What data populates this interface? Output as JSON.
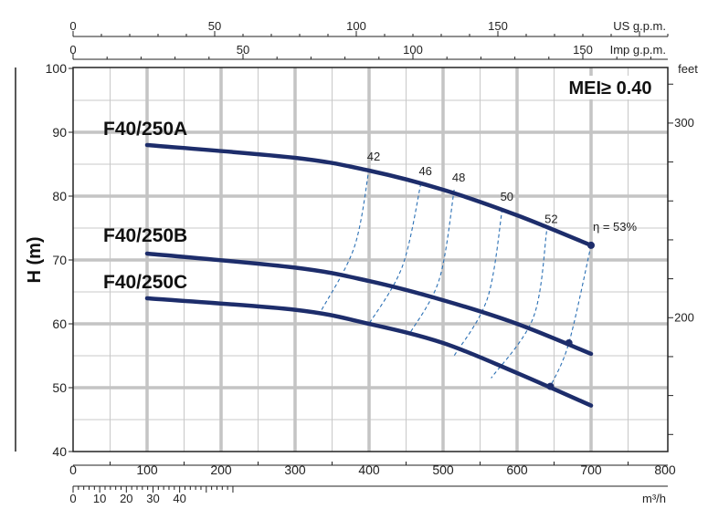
{
  "chart_data": {
    "type": "line",
    "mei_label": "MEI≥ 0.40",
    "ylabel": "H (m)",
    "right_unit": "feet",
    "top_unit_us": "US g.p.m.",
    "top_unit_imp": "Imp g.p.m.",
    "bottom_unit": "m³/h",
    "xlim": [
      0,
      800
    ],
    "ylim": [
      40,
      100
    ],
    "x_ticks": [
      0,
      100,
      200,
      300,
      400,
      500,
      600,
      700,
      800
    ],
    "y_ticks": [
      40,
      50,
      60,
      70,
      80,
      90,
      100
    ],
    "feet_ticks": [
      200,
      300
    ],
    "us_gpm_ticks": [
      0,
      50,
      100,
      150
    ],
    "imp_gpm_ticks": [
      0,
      50,
      100,
      150
    ],
    "ls_ticks": [
      0,
      10,
      20,
      30,
      40
    ],
    "grid": true,
    "series": [
      {
        "name": "F40/250A",
        "x": [
          100,
          300,
          400,
          500,
          600,
          700
        ],
        "y": [
          88,
          86,
          84,
          81,
          77,
          72.3
        ]
      },
      {
        "name": "F40/250B",
        "x": [
          100,
          300,
          400,
          500,
          600,
          700
        ],
        "y": [
          71,
          68.8,
          66.7,
          63.7,
          60,
          55.3
        ]
      },
      {
        "name": "F40/250C",
        "x": [
          100,
          300,
          400,
          500,
          600,
          700
        ],
        "y": [
          64,
          62.2,
          60,
          57,
          52.3,
          47.2
        ]
      }
    ],
    "efficiency_curves": [
      {
        "label": "42",
        "points": [
          [
            400,
            84.3
          ],
          [
            380,
            72
          ],
          [
            335,
            62
          ]
        ]
      },
      {
        "label": "46",
        "points": [
          [
            470,
            82
          ],
          [
            445,
            69
          ],
          [
            400,
            60
          ]
        ]
      },
      {
        "label": "48",
        "points": [
          [
            515,
            81
          ],
          [
            495,
            67
          ],
          [
            455,
            58.5
          ]
        ]
      },
      {
        "label": "50",
        "points": [
          [
            580,
            78
          ],
          [
            560,
            64
          ],
          [
            515,
            55
          ]
        ]
      },
      {
        "label": "52",
        "points": [
          [
            640,
            74.5
          ],
          [
            622,
            61
          ],
          [
            565,
            51.5
          ]
        ]
      },
      {
        "label": "η = 53%",
        "points": [
          [
            700,
            72.3
          ],
          [
            670,
            57
          ],
          [
            645,
            50.2
          ]
        ]
      }
    ]
  }
}
